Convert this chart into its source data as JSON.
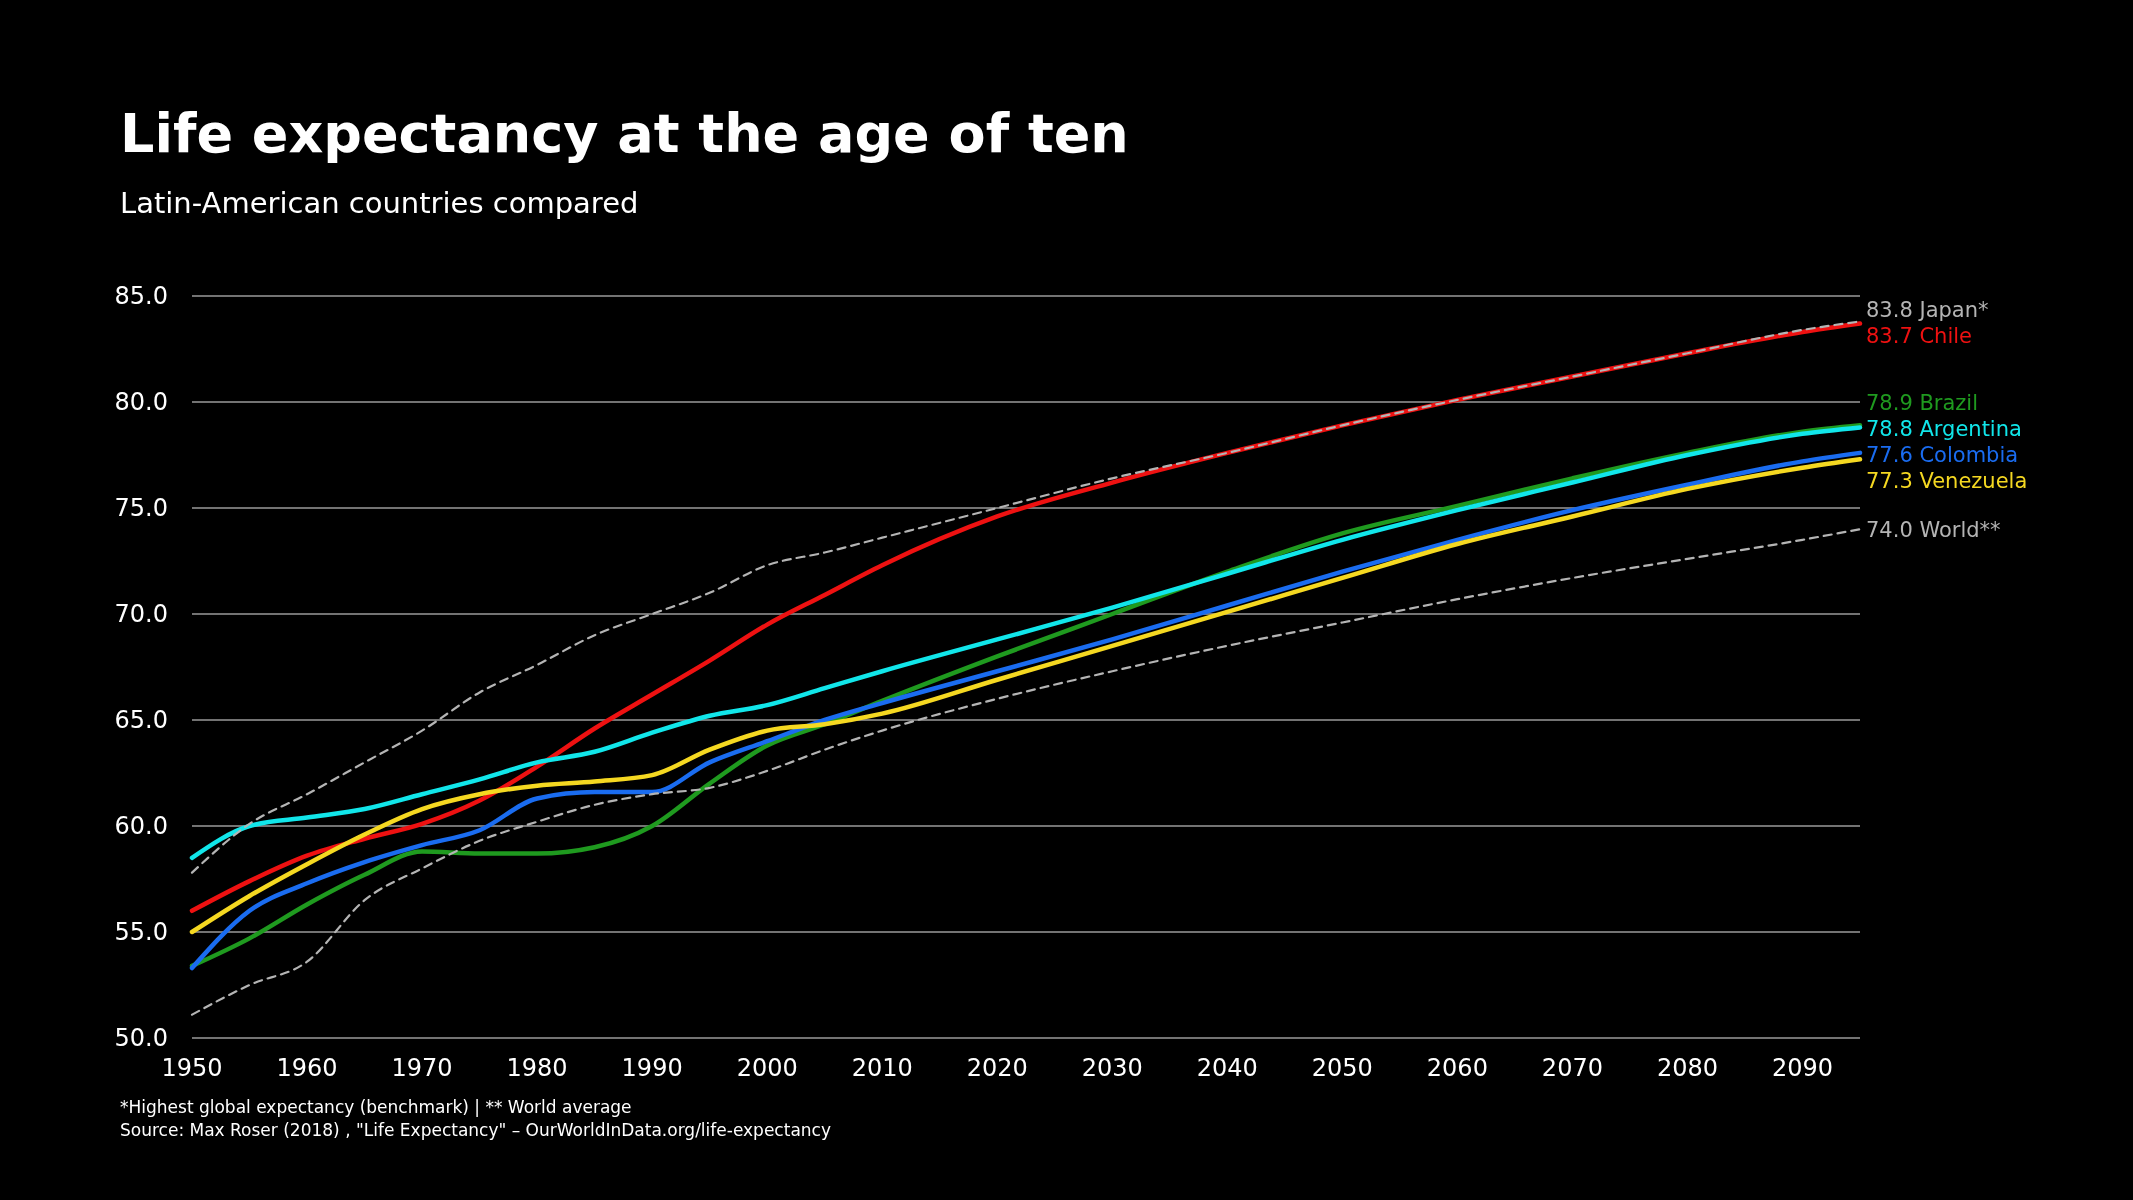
{
  "chart_data": {
    "type": "line",
    "title": "Life expectancy at the age of ten",
    "subtitle": "Latin-American countries compared",
    "x": [
      1950,
      1955,
      1960,
      1965,
      1970,
      1975,
      1980,
      1985,
      1990,
      1995,
      2000,
      2005,
      2010,
      2020,
      2030,
      2040,
      2050,
      2060,
      2070,
      2080,
      2090,
      2095
    ],
    "series": [
      {
        "name": "Japan*",
        "color": "#b4b4b4",
        "line_style": "dashed",
        "value_labels": [
          null,
          null,
          null,
          null,
          null,
          null,
          null,
          null,
          null,
          null,
          null,
          null,
          null,
          null,
          null,
          null,
          null,
          null,
          null,
          null,
          null,
          "83.8"
        ],
        "values": [
          57.8,
          60.1,
          61.5,
          63.0,
          64.5,
          66.3,
          67.6,
          69.0,
          70.0,
          71.0,
          72.3,
          72.9,
          73.6,
          75.0,
          76.4,
          77.6,
          78.9,
          80.1,
          81.2,
          82.3,
          83.4,
          83.8
        ]
      },
      {
        "name": "Chile",
        "color": "#ee1111",
        "value_labels": [
          null,
          null,
          null,
          null,
          null,
          null,
          null,
          null,
          null,
          null,
          null,
          null,
          null,
          null,
          null,
          null,
          null,
          null,
          null,
          null,
          null,
          "83.7"
        ],
        "values": [
          56.0,
          57.4,
          58.6,
          59.4,
          60.1,
          61.2,
          62.8,
          64.6,
          66.2,
          67.8,
          69.5,
          70.9,
          72.3,
          74.6,
          76.2,
          77.6,
          78.9,
          80.1,
          81.2,
          82.3,
          83.3,
          83.7
        ]
      },
      {
        "name": "Brazil",
        "color": "#1f9a1f",
        "value_labels": [
          null,
          null,
          null,
          null,
          null,
          null,
          null,
          null,
          null,
          null,
          null,
          null,
          null,
          null,
          null,
          null,
          null,
          null,
          null,
          null,
          null,
          "78.9"
        ],
        "values": [
          53.4,
          54.7,
          56.3,
          57.7,
          58.8,
          58.7,
          58.7,
          59.0,
          60.0,
          62.0,
          63.8,
          64.8,
          65.9,
          68.0,
          70.0,
          72.0,
          73.8,
          75.1,
          76.4,
          77.6,
          78.6,
          78.9
        ]
      },
      {
        "name": "Argentina",
        "color": "#11e6ea",
        "value_labels": [
          null,
          null,
          null,
          null,
          null,
          null,
          null,
          null,
          null,
          null,
          null,
          null,
          null,
          null,
          null,
          null,
          null,
          null,
          null,
          null,
          null,
          "78.8"
        ],
        "values": [
          58.5,
          60.0,
          60.4,
          60.8,
          61.5,
          62.2,
          63.0,
          63.5,
          64.4,
          65.2,
          65.7,
          66.5,
          67.3,
          68.8,
          70.3,
          71.9,
          73.5,
          74.9,
          76.2,
          77.5,
          78.5,
          78.8
        ]
      },
      {
        "name": "Colombia",
        "color": "#1a6cf0",
        "value_labels": [
          null,
          null,
          null,
          null,
          null,
          null,
          null,
          null,
          null,
          null,
          null,
          null,
          null,
          null,
          null,
          null,
          null,
          null,
          null,
          null,
          null,
          "77.6"
        ],
        "values": [
          53.3,
          56.0,
          57.3,
          58.3,
          59.1,
          59.8,
          61.3,
          61.6,
          61.6,
          63.0,
          64.0,
          65.0,
          65.8,
          67.3,
          68.8,
          70.4,
          72.0,
          73.5,
          74.9,
          76.1,
          77.2,
          77.6
        ]
      },
      {
        "name": "Venezuela",
        "color": "#f5d821",
        "value_labels": [
          null,
          null,
          null,
          null,
          null,
          null,
          null,
          null,
          null,
          null,
          null,
          null,
          null,
          null,
          null,
          null,
          null,
          null,
          null,
          null,
          null,
          "77.3"
        ],
        "values": [
          55.0,
          56.7,
          58.2,
          59.6,
          60.8,
          61.5,
          61.9,
          62.1,
          62.4,
          63.6,
          64.5,
          64.8,
          65.3,
          66.9,
          68.5,
          70.1,
          71.7,
          73.3,
          74.6,
          75.9,
          76.9,
          77.3
        ]
      },
      {
        "name": "World**",
        "color": "#b4b4b4",
        "line_style": "dashed",
        "value_labels": [
          null,
          null,
          null,
          null,
          null,
          null,
          null,
          null,
          null,
          null,
          null,
          null,
          null,
          null,
          null,
          null,
          null,
          null,
          null,
          null,
          null,
          "74.0"
        ],
        "values": [
          51.1,
          52.5,
          53.6,
          56.5,
          58.0,
          59.3,
          60.2,
          61.0,
          61.5,
          61.8,
          62.6,
          63.6,
          64.5,
          66.0,
          67.3,
          68.5,
          69.6,
          70.7,
          71.7,
          72.6,
          73.5,
          74.0
        ]
      }
    ],
    "xlim": [
      1950,
      2095
    ],
    "xticks": [
      1950,
      1960,
      1970,
      1980,
      1990,
      2000,
      2010,
      2020,
      2030,
      2040,
      2050,
      2060,
      2070,
      2080,
      2090
    ],
    "ylim": [
      50,
      85
    ],
    "yticks": [
      {
        "value": 50,
        "label": "50.0"
      },
      {
        "value": 55,
        "label": "55.0"
      },
      {
        "value": 60,
        "label": "60.0"
      },
      {
        "value": 65,
        "label": "65.0"
      },
      {
        "value": 70,
        "label": "70.0"
      },
      {
        "value": 75,
        "label": "75.0"
      },
      {
        "value": 80,
        "label": "80.0"
      },
      {
        "value": 85,
        "label": "85.0"
      }
    ],
    "grid": "y",
    "legend": false,
    "annotations": [
      "*Highest global expectancy (benchmark) | ** World average",
      "Source: Max Roser (2018) , \"Life Expectancy\" – OurWorldInData.org/life-expectancy"
    ]
  }
}
